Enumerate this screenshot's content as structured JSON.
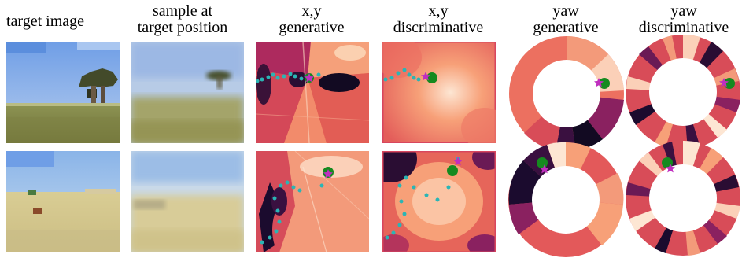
{
  "columns": {
    "target_image": "target image",
    "sample_line1": "sample at",
    "sample_line2": "target position",
    "xy_gen_line1": "x,y",
    "xy_gen_line2": "generative",
    "xy_disc_line1": "x,y",
    "xy_disc_line2": "discriminative",
    "yaw_gen_line1": "yaw",
    "yaw_gen_line2": "generative",
    "yaw_disc_line1": "yaw",
    "yaw_disc_line2": "discriminative"
  },
  "rows": [
    {
      "name": "row-1-savanna-tree"
    },
    {
      "name": "row-2-desert-plain"
    }
  ],
  "colors": {
    "heat_dark": "#1b0b2e",
    "heat_mid": "#c43a5a",
    "heat_light": "#f7a078",
    "heat_pale": "#fde6d3",
    "trajectory_dot": "#2ab5b5",
    "target_dot": "#158a1f",
    "star": "#c02fbf"
  }
}
